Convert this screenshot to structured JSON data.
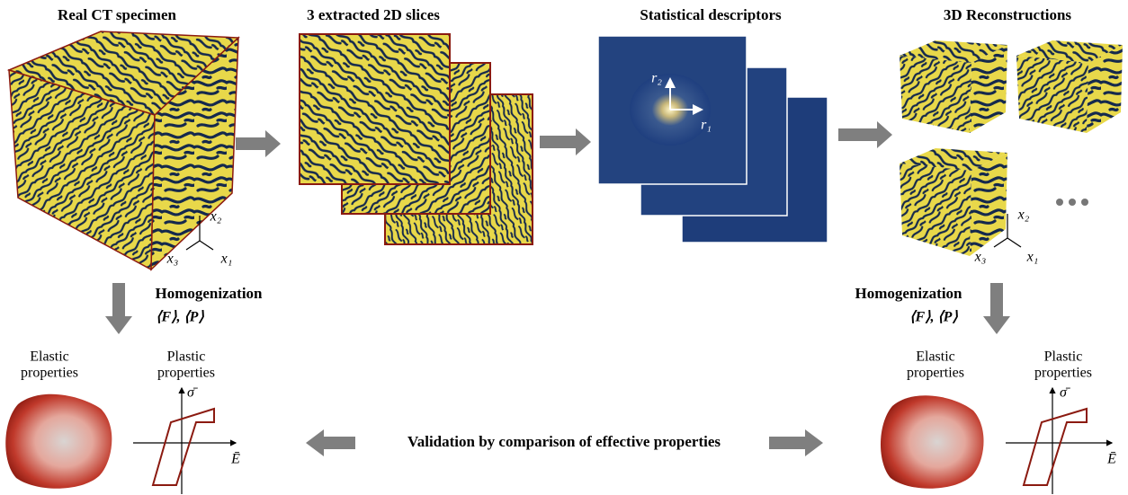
{
  "panels": [
    {
      "title": "Real CT specimen",
      "axes": [
        "x₂",
        "x₃",
        "x₁"
      ]
    },
    {
      "title": "3 extracted 2D slices"
    },
    {
      "title": "Statistical descriptors",
      "axes": [
        "r₂",
        "r₁"
      ]
    },
    {
      "title": "3D Reconstructions",
      "axes": [
        "x₂",
        "x₃",
        "x₁"
      ]
    }
  ],
  "homogenization": [
    {
      "label": "Homogenization",
      "quantities": "⟨F⟩, ⟨P⟩",
      "elastic": [
        "Elastic",
        "properties"
      ],
      "plastic": [
        "Plastic",
        "properties"
      ],
      "stress": "σ̄",
      "strain": "Ē"
    },
    {
      "label": "Homogenization",
      "quantities": "⟨F⟩, ⟨P⟩",
      "elastic": [
        "Elastic",
        "properties"
      ],
      "plastic": [
        "Plastic",
        "properties"
      ],
      "stress": "σ̄",
      "strain": "Ē"
    }
  ],
  "validation": "Validation by comparison of effective properties"
}
